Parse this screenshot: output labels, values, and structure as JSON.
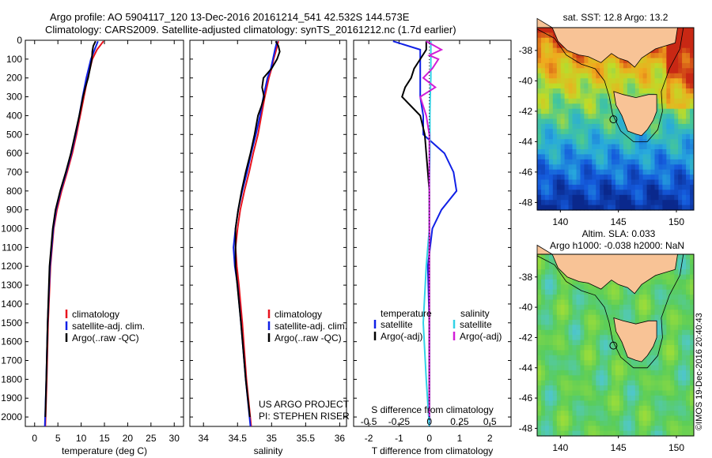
{
  "header": {
    "title_line1": "Argo profile: AO 5904117_120 13-Dec-2016 20161214_541 42.532S 144.573E",
    "title_line2": "Climatology: CARS2009. Satellite-adjusted climatology: synTS_20161212.nc (1.7d earlier)"
  },
  "credit": "©IMOS 19-Dec-2016 20:40:43",
  "colors": {
    "climatology": "#e8141e",
    "satellite_adj": "#1020e6",
    "argo": "#000000",
    "satellite_s": "#32d2e6",
    "argo_s": "#d21ed7",
    "land": "#f8c396"
  },
  "chart_data": [
    {
      "type": "line",
      "panel": "temperature",
      "xlabel": "temperature (deg C)",
      "ylabel": "",
      "xlim": [
        -2,
        32
      ],
      "ylim": [
        2050,
        0
      ],
      "xticks": [
        "0",
        "5",
        "10",
        "15",
        "20",
        "25",
        "30"
      ],
      "yticks": [
        "0",
        "100",
        "200",
        "300",
        "400",
        "500",
        "600",
        "700",
        "800",
        "900",
        "1000",
        "1100",
        "1200",
        "1300",
        "1400",
        "1500",
        "1600",
        "1700",
        "1800",
        "1900",
        "2000"
      ],
      "legend": [
        "climatology",
        "satellite-adj. clim.",
        "Argo(..raw -QC)"
      ],
      "series": [
        {
          "name": "climatology",
          "depth": [
            5,
            50,
            100,
            150,
            200,
            300,
            400,
            500,
            600,
            700,
            800,
            900,
            1000,
            1200,
            1500,
            1800,
            2050
          ],
          "values": [
            14.8,
            13.4,
            12.4,
            11.9,
            11.4,
            10.6,
            9.8,
            9.0,
            8.1,
            7.0,
            5.8,
            4.8,
            4.1,
            3.4,
            2.9,
            2.6,
            2.3
          ]
        },
        {
          "name": "satellite-adj. clim.",
          "depth": [
            5,
            50,
            100,
            150,
            200,
            300,
            400,
            500,
            600,
            700,
            800,
            900,
            1000,
            1200,
            1500,
            1800,
            2050
          ],
          "values": [
            13.6,
            12.9,
            12.1,
            11.6,
            11.1,
            10.3,
            9.6,
            8.8,
            7.9,
            6.8,
            5.6,
            4.6,
            4.0,
            3.3,
            2.8,
            2.5,
            2.2
          ]
        },
        {
          "name": "Argo(..raw -QC)",
          "depth": [
            5,
            30,
            60,
            100,
            150,
            200,
            250,
            300,
            350,
            400,
            500,
            600,
            700,
            800,
            900,
            1000,
            1200,
            1500,
            1800,
            2000
          ],
          "values": [
            13.1,
            12.6,
            12.4,
            12.3,
            11.9,
            11.5,
            10.9,
            10.4,
            10.0,
            9.6,
            8.7,
            7.8,
            6.7,
            5.5,
            4.5,
            3.9,
            3.2,
            2.8,
            2.5,
            2.3
          ]
        }
      ]
    },
    {
      "type": "line",
      "panel": "salinity",
      "xlabel": "salinity",
      "ylabel": "",
      "xlim": [
        33.8,
        36.1
      ],
      "ylim": [
        2050,
        0
      ],
      "xticks": [
        "34",
        "34.5",
        "35",
        "35.5",
        "36"
      ],
      "legend": [
        "climatology",
        "satellite-adj. clim.",
        "Argo(..raw -QC)"
      ],
      "annotation": [
        "US ARGO PROJECT",
        "PI: STEPHEN RISER"
      ],
      "series": [
        {
          "name": "climatology",
          "depth": [
            5,
            50,
            100,
            150,
            200,
            300,
            400,
            500,
            600,
            700,
            800,
            900,
            1000,
            1100,
            1200,
            1300,
            1500,
            1800,
            2050
          ],
          "values": [
            35.1,
            35.07,
            35.03,
            35.0,
            34.96,
            34.9,
            34.85,
            34.8,
            34.73,
            34.67,
            34.6,
            34.54,
            34.5,
            34.47,
            34.49,
            34.52,
            34.57,
            34.63,
            34.7
          ]
        },
        {
          "name": "satellite-adj. clim.",
          "depth": [
            5,
            50,
            100,
            150,
            200,
            300,
            400,
            500,
            600,
            700,
            800,
            900,
            1000,
            1100,
            1200,
            1300,
            1500,
            1800,
            2050
          ],
          "values": [
            35.08,
            35.05,
            35.02,
            34.99,
            34.94,
            34.88,
            34.83,
            34.77,
            34.7,
            34.64,
            34.57,
            34.51,
            34.47,
            34.44,
            34.46,
            34.5,
            34.55,
            34.62,
            34.69
          ]
        },
        {
          "name": "Argo(..raw -QC)",
          "depth": [
            5,
            30,
            60,
            100,
            150,
            200,
            250,
            300,
            350,
            400,
            500,
            600,
            700,
            800,
            900,
            1000,
            1200,
            1500,
            1800,
            2000
          ],
          "values": [
            35.06,
            35.1,
            35.12,
            35.08,
            35.0,
            34.88,
            34.86,
            34.89,
            34.85,
            34.8,
            34.75,
            34.69,
            34.62,
            34.56,
            34.51,
            34.47,
            34.47,
            34.55,
            34.62,
            34.68
          ]
        }
      ]
    },
    {
      "type": "line",
      "panel": "difference",
      "xlabel": "T difference from climatology",
      "xlabel_top": "S difference from climatology",
      "xlim": [
        -2.5,
        2.7
      ],
      "ylim": [
        2050,
        0
      ],
      "xticks": [
        "-2",
        "-1",
        "0",
        "1",
        "2"
      ],
      "xticks_top": [
        "-0.5",
        "-0.25",
        "0",
        "0.25",
        "0.5"
      ],
      "legend_headers": [
        "temperature",
        "salinity"
      ],
      "legend": [
        "satellite",
        "Argo(-adj)",
        "satellite",
        "Argo(-adj)"
      ],
      "series": [
        {
          "name": "temperature satellite",
          "depth": [
            5,
            50,
            100,
            150,
            200,
            300,
            400,
            500,
            600,
            700,
            800,
            900,
            1000,
            1200,
            1500,
            1800,
            2050
          ],
          "values": [
            -1.2,
            -0.3,
            -0.3,
            -0.3,
            -0.3,
            -0.3,
            -0.2,
            -0.2,
            0.5,
            0.8,
            0.9,
            0.4,
            0.1,
            -0.05,
            0.0,
            0.0,
            0.0
          ]
        },
        {
          "name": "temperature Argo(-adj)",
          "depth": [
            5,
            50,
            100,
            150,
            200,
            250,
            300,
            350,
            400,
            500,
            600,
            700,
            800,
            900,
            1000,
            1200,
            1500,
            1800,
            2000
          ],
          "values": [
            -0.1,
            -0.1,
            -0.3,
            -0.5,
            -0.6,
            -0.8,
            -0.9,
            -0.6,
            -0.3,
            -0.15,
            -0.1,
            -0.05,
            0.0,
            0.0,
            0.0,
            0.0,
            0.0,
            0.0,
            0.0
          ]
        },
        {
          "name": "salinity satellite",
          "depth": [
            5,
            100,
            200,
            300,
            400,
            600,
            800,
            1000,
            1200,
            1500,
            1800,
            2050
          ],
          "values": [
            0.05,
            0.05,
            0.05,
            0.03,
            0.02,
            0.02,
            0.0,
            0.0,
            -0.1,
            -0.2,
            -0.1,
            0.0
          ]
        },
        {
          "name": "salinity Argo(-adj)",
          "depth": [
            5,
            50,
            80,
            100,
            150,
            200,
            250,
            300,
            350,
            400,
            500,
            600,
            800,
            1000,
            1200,
            1500,
            1800,
            2000
          ],
          "values": [
            -0.1,
            0.4,
            0.0,
            0.3,
            0.1,
            -0.2,
            0.2,
            -0.3,
            -0.2,
            -0.1,
            0.0,
            0.0,
            0.0,
            0.0,
            0.0,
            0.0,
            0.0,
            0.0
          ]
        }
      ]
    },
    {
      "type": "heatmap",
      "panel": "sst-map",
      "title": "sat. SST: 12.8 Argo: 13.2",
      "xlim": [
        138,
        151.5
      ],
      "ylim": [
        -48.5,
        -36.5
      ],
      "xticks": [
        "140",
        "145",
        "150"
      ],
      "yticks": [
        "-38",
        "-40",
        "-42",
        "-44",
        "-46",
        "-48"
      ],
      "argo_position": {
        "lon": 144.573,
        "lat": -42.532
      }
    },
    {
      "type": "heatmap",
      "panel": "sla-map",
      "title_line1": "Altim. SLA: 0.033",
      "title_line2": "Argo h1000: -0.038 h2000: NaN",
      "xlim": [
        138,
        151.5
      ],
      "ylim": [
        -48.5,
        -36.5
      ],
      "xticks": [
        "140",
        "145",
        "150"
      ],
      "yticks": [
        "-38",
        "-40",
        "-42",
        "-44",
        "-46",
        "-48"
      ],
      "argo_position": {
        "lon": 144.573,
        "lat": -42.532
      }
    }
  ]
}
